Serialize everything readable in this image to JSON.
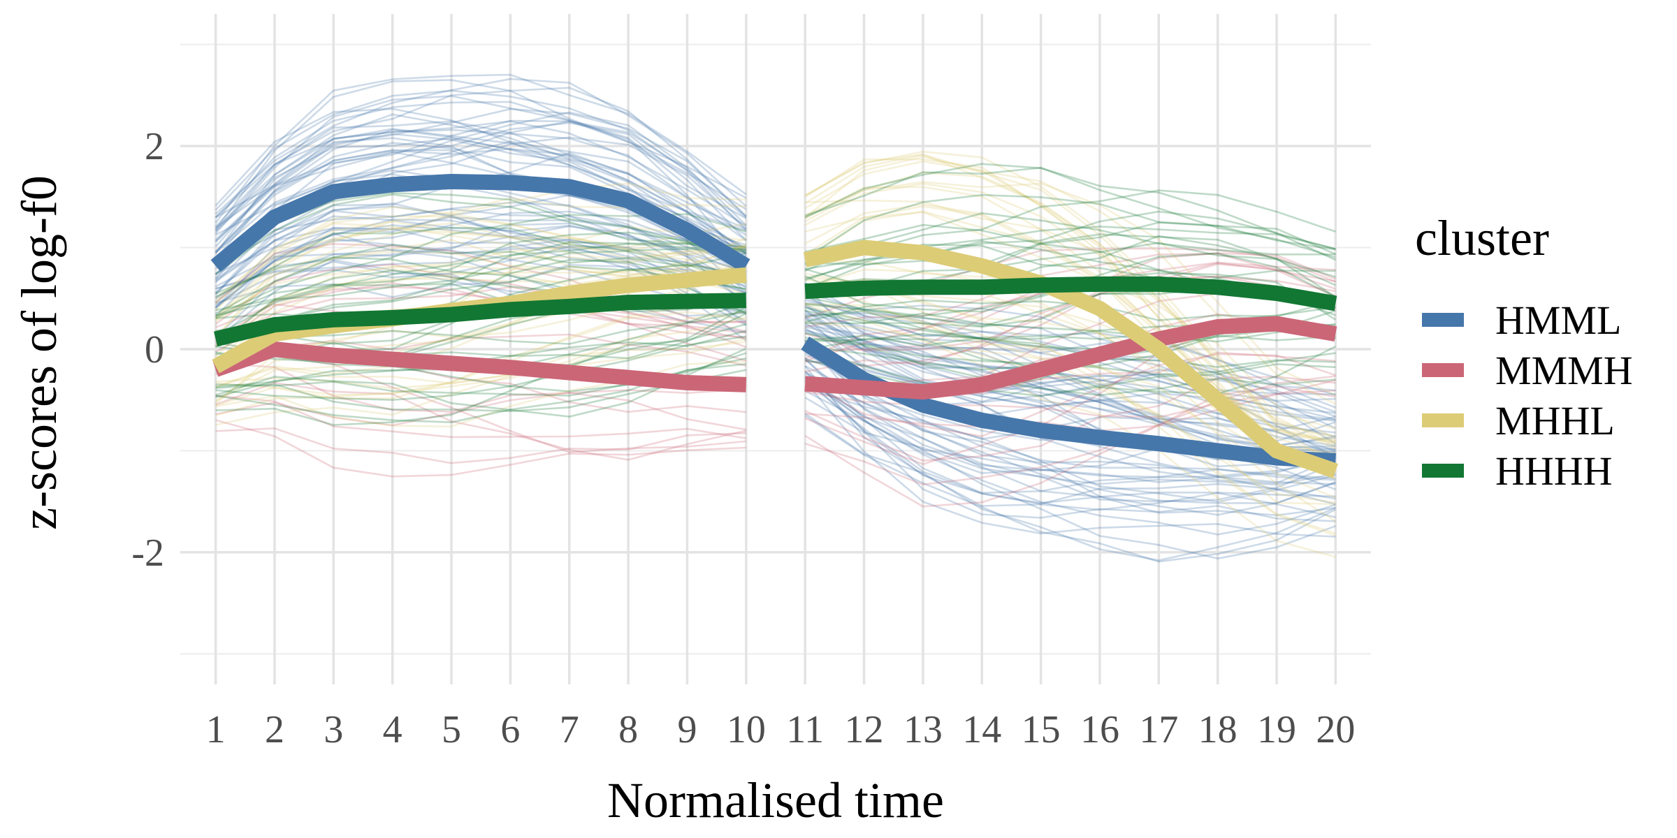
{
  "chart_data": {
    "type": "line",
    "xlabel": "Normalised time",
    "ylabel": "z-scores of log-f0",
    "x_ticks": [
      "1",
      "2",
      "3",
      "4",
      "5",
      "6",
      "7",
      "8",
      "9",
      "10",
      "11",
      "12",
      "13",
      "14",
      "15",
      "16",
      "17",
      "18",
      "19",
      "20"
    ],
    "y_ticks": [
      {
        "value": 2,
        "label": "2"
      },
      {
        "value": 0,
        "label": "0"
      },
      {
        "value": -2,
        "label": "-2"
      }
    ],
    "xlim": [
      0.4,
      20.6
    ],
    "ylim": [
      -3.3,
      3.3
    ],
    "grid": true,
    "legend": {
      "title": "cluster",
      "position": "right",
      "entries": [
        {
          "label": "HMML",
          "color": "#4677ab"
        },
        {
          "label": "MMMH",
          "color": "#cb6677"
        },
        {
          "label": "MHHL",
          "color": "#dccc76"
        },
        {
          "label": "HHHH",
          "color": "#127733"
        }
      ]
    },
    "segments": [
      [
        1,
        10
      ],
      [
        11,
        20
      ]
    ],
    "series": [
      {
        "name": "HMML",
        "color": "#4677ab",
        "x": [
          1,
          2,
          3,
          4,
          5,
          6,
          7,
          8,
          9,
          10,
          11,
          12,
          13,
          14,
          15,
          16,
          17,
          18,
          19,
          20
        ],
        "y": [
          0.82,
          1.3,
          1.55,
          1.62,
          1.65,
          1.64,
          1.6,
          1.46,
          1.17,
          0.82,
          0.06,
          -0.3,
          -0.55,
          -0.7,
          -0.8,
          -0.87,
          -0.93,
          -1.0,
          -1.07,
          -1.1
        ]
      },
      {
        "name": "MMMH",
        "color": "#cb6677",
        "x": [
          1,
          2,
          3,
          4,
          5,
          6,
          7,
          8,
          9,
          10,
          11,
          12,
          13,
          14,
          15,
          16,
          17,
          18,
          19,
          20
        ],
        "y": [
          -0.2,
          0.0,
          -0.06,
          -0.1,
          -0.14,
          -0.18,
          -0.23,
          -0.28,
          -0.33,
          -0.35,
          -0.34,
          -0.38,
          -0.42,
          -0.35,
          -0.2,
          -0.05,
          0.1,
          0.22,
          0.25,
          0.15
        ]
      },
      {
        "name": "MHHL",
        "color": "#dccc76",
        "x": [
          1,
          2,
          3,
          4,
          5,
          6,
          7,
          8,
          9,
          10,
          11,
          12,
          13,
          14,
          15,
          16,
          17,
          18,
          19,
          20
        ],
        "y": [
          -0.17,
          0.15,
          0.23,
          0.3,
          0.38,
          0.45,
          0.55,
          0.63,
          0.68,
          0.73,
          0.88,
          1.0,
          0.95,
          0.82,
          0.65,
          0.4,
          0.0,
          -0.5,
          -1.0,
          -1.2
        ]
      },
      {
        "name": "HHHH",
        "color": "#127733",
        "x": [
          1,
          2,
          3,
          4,
          5,
          6,
          7,
          8,
          9,
          10,
          11,
          12,
          13,
          14,
          15,
          16,
          17,
          18,
          19,
          20
        ],
        "y": [
          0.1,
          0.24,
          0.29,
          0.31,
          0.34,
          0.39,
          0.42,
          0.46,
          0.47,
          0.48,
          0.57,
          0.6,
          0.61,
          0.61,
          0.63,
          0.64,
          0.64,
          0.61,
          0.55,
          0.45
        ]
      }
    ]
  }
}
